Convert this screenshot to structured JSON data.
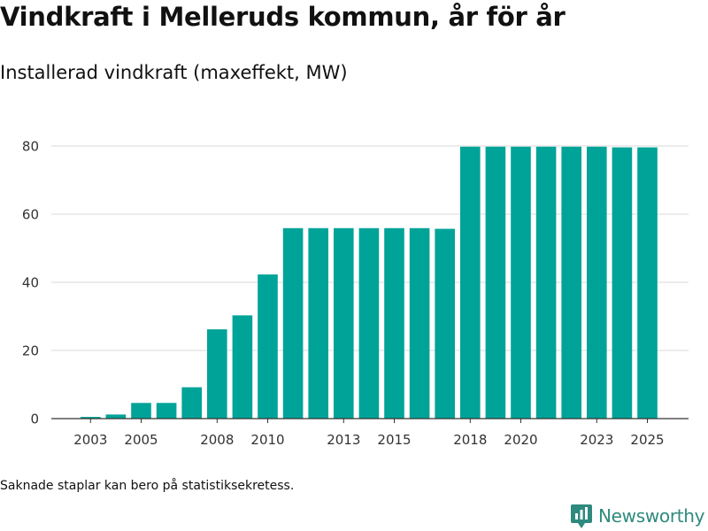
{
  "colors": {
    "bar": "#00a398",
    "grid": "#d9d9d9",
    "axis": "#333333",
    "brand": "#2e8a7e"
  },
  "page": {
    "title": "Vindkraft i Melleruds kommun, år för år",
    "subtitle": "Installerad vindkraft (maxeffekt, MW)",
    "footnote": "Saknade staplar kan bero på statistiksekretess.",
    "brand": {
      "name": "Newsworthy",
      "icon": "newsworthy-logo-icon"
    }
  },
  "chart_data": {
    "type": "bar",
    "title": "Vindkraft i Melleruds kommun, år för år",
    "subtitle": "Installerad vindkraft (maxeffekt, MW)",
    "xlabel": "",
    "ylabel": "",
    "grid": true,
    "ylim": [
      0,
      80
    ],
    "yticks": [
      0,
      20,
      40,
      60,
      80
    ],
    "xticks": [
      2003,
      2005,
      2008,
      2010,
      2013,
      2015,
      2018,
      2020,
      2023,
      2025
    ],
    "categories": [
      2003,
      2004,
      2005,
      2006,
      2007,
      2008,
      2009,
      2010,
      2011,
      2012,
      2013,
      2014,
      2015,
      2016,
      2017,
      2018,
      2019,
      2020,
      2021,
      2022,
      2023,
      2024,
      2025
    ],
    "series": [
      {
        "name": "Installerad vindkraft (maxeffekt, MW)",
        "values": [
          0.5,
          1.2,
          4.6,
          4.6,
          9.2,
          26.2,
          30.3,
          42.3,
          55.9,
          55.9,
          55.9,
          55.9,
          55.9,
          55.9,
          55.7,
          79.8,
          79.8,
          79.8,
          79.8,
          79.8,
          79.8,
          79.6,
          79.6
        ]
      }
    ]
  }
}
